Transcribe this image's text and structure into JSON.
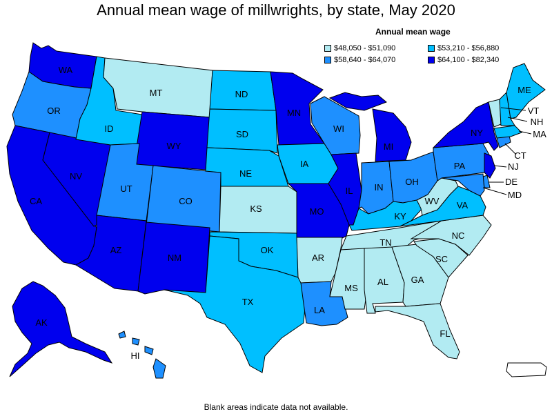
{
  "title": "Annual mean wage of millwrights, by state, May 2020",
  "legend": {
    "title": "Annual mean wage",
    "items": [
      {
        "label": "$48,050 - $51,090",
        "color": "#b2ebf2"
      },
      {
        "label": "$53,210 - $56,880",
        "color": "#00bfff"
      },
      {
        "label": "$58,640 - $64,070",
        "color": "#1e90ff"
      },
      {
        "label": "$64,100 - $82,340",
        "color": "#0000ee"
      }
    ]
  },
  "footnote": "Blank areas indicate data not available.",
  "states": {
    "WA": "$64,100 - $82,340",
    "OR": "$58,640 - $64,070",
    "CA": "$64,100 - $82,340",
    "NV": "$64,100 - $82,340",
    "ID": "$53,210 - $56,880",
    "MT": "$48,050 - $51,090",
    "WY": "$64,100 - $82,340",
    "UT": "$58,640 - $64,070",
    "AZ": "$64,100 - $82,340",
    "CO": "$58,640 - $64,070",
    "NM": "$64,100 - $82,340",
    "ND": "$53,210 - $56,880",
    "SD": "$53,210 - $56,880",
    "NE": "$53,210 - $56,880",
    "KS": "$48,050 - $51,090",
    "OK": "$53,210 - $56,880",
    "TX": "$53,210 - $56,880",
    "MN": "$64,100 - $82,340",
    "IA": "$53,210 - $56,880",
    "MO": "$64,100 - $82,340",
    "AR": "$48,050 - $51,090",
    "LA": "$58,640 - $64,070",
    "WI": "$58,640 - $64,070",
    "IL": "$64,100 - $82,340",
    "MI": "$64,100 - $82,340",
    "IN": "$58,640 - $64,070",
    "OH": "$58,640 - $64,070",
    "KY": "$53,210 - $56,880",
    "TN": "$48,050 - $51,090",
    "MS": "$48,050 - $51,090",
    "AL": "$48,050 - $51,090",
    "GA": "$48,050 - $51,090",
    "FL": "$48,050 - $51,090",
    "SC": "$48,050 - $51,090",
    "NC": "$48,050 - $51,090",
    "VA": "$53,210 - $56,880",
    "WV": "$48,050 - $51,090",
    "PA": "$58,640 - $64,070",
    "NY": "$64,100 - $82,340",
    "VT": "$48,050 - $51,090",
    "NH": "$53,210 - $56,880",
    "ME": "$53,210 - $56,880",
    "MA": "$53,210 - $56,880",
    "CT": "$58,640 - $64,070",
    "NJ": "$64,100 - $82,340",
    "DE": "$58,640 - $64,070",
    "MD": "$58,640 - $64,070",
    "AK": "$64,100 - $82,340",
    "HI": "$58,640 - $64,070"
  }
}
